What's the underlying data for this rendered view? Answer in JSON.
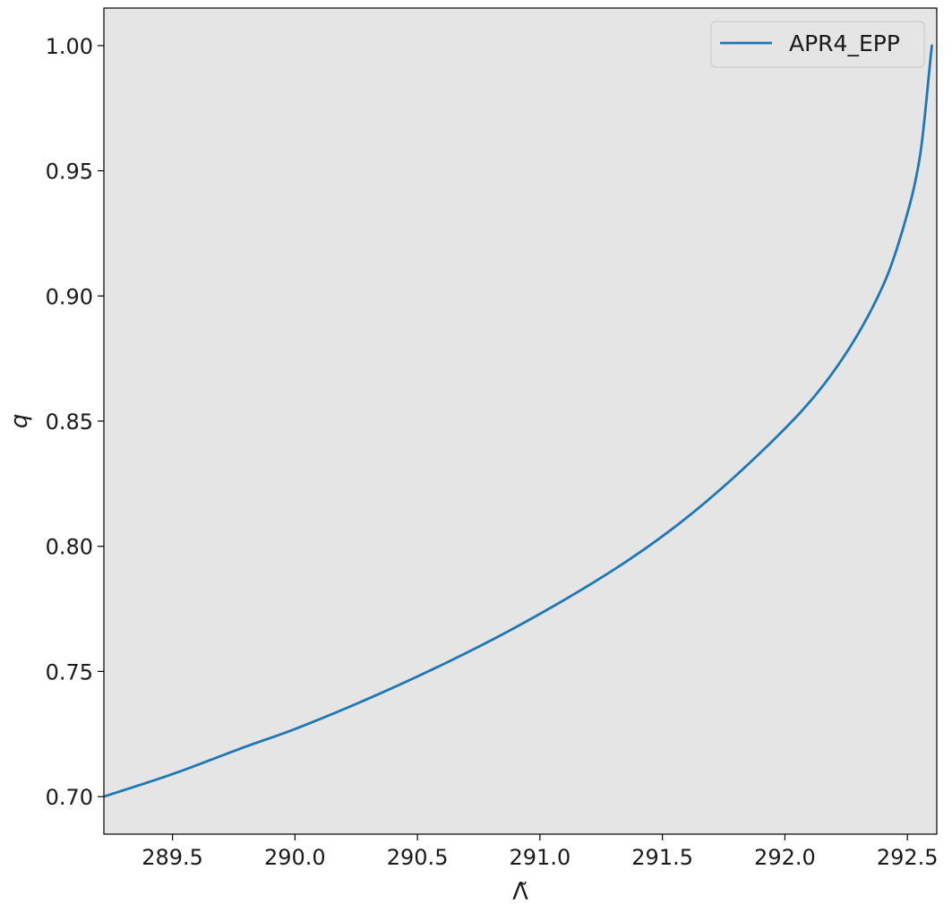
{
  "chart_data": {
    "type": "line",
    "title": "",
    "xlabel": "Λ̃",
    "ylabel": "q",
    "xlim": [
      289.22,
      292.62
    ],
    "ylim": [
      0.685,
      1.015
    ],
    "xticks": [
      289.5,
      290.0,
      290.5,
      291.0,
      291.5,
      292.0,
      292.5
    ],
    "xtick_labels": [
      "289.5",
      "290.0",
      "290.5",
      "291.0",
      "291.5",
      "292.0",
      "292.5"
    ],
    "yticks": [
      0.7,
      0.75,
      0.8,
      0.85,
      0.9,
      0.95,
      1.0
    ],
    "ytick_labels": [
      "0.70",
      "0.75",
      "0.80",
      "0.85",
      "0.90",
      "0.95",
      "1.00"
    ],
    "grid": false,
    "background": "#e5e5e5",
    "legend_position": "top-right",
    "series": [
      {
        "name": "APR4_EPP",
        "color": "#1f77b4",
        "x": [
          289.22,
          289.5,
          289.8,
          290.0,
          290.5,
          291.0,
          291.5,
          292.0,
          292.2,
          292.4,
          292.5,
          292.55,
          292.6
        ],
        "y": [
          0.7,
          0.709,
          0.72,
          0.727,
          0.748,
          0.773,
          0.804,
          0.847,
          0.87,
          0.904,
          0.933,
          0.955,
          1.0
        ]
      }
    ]
  }
}
